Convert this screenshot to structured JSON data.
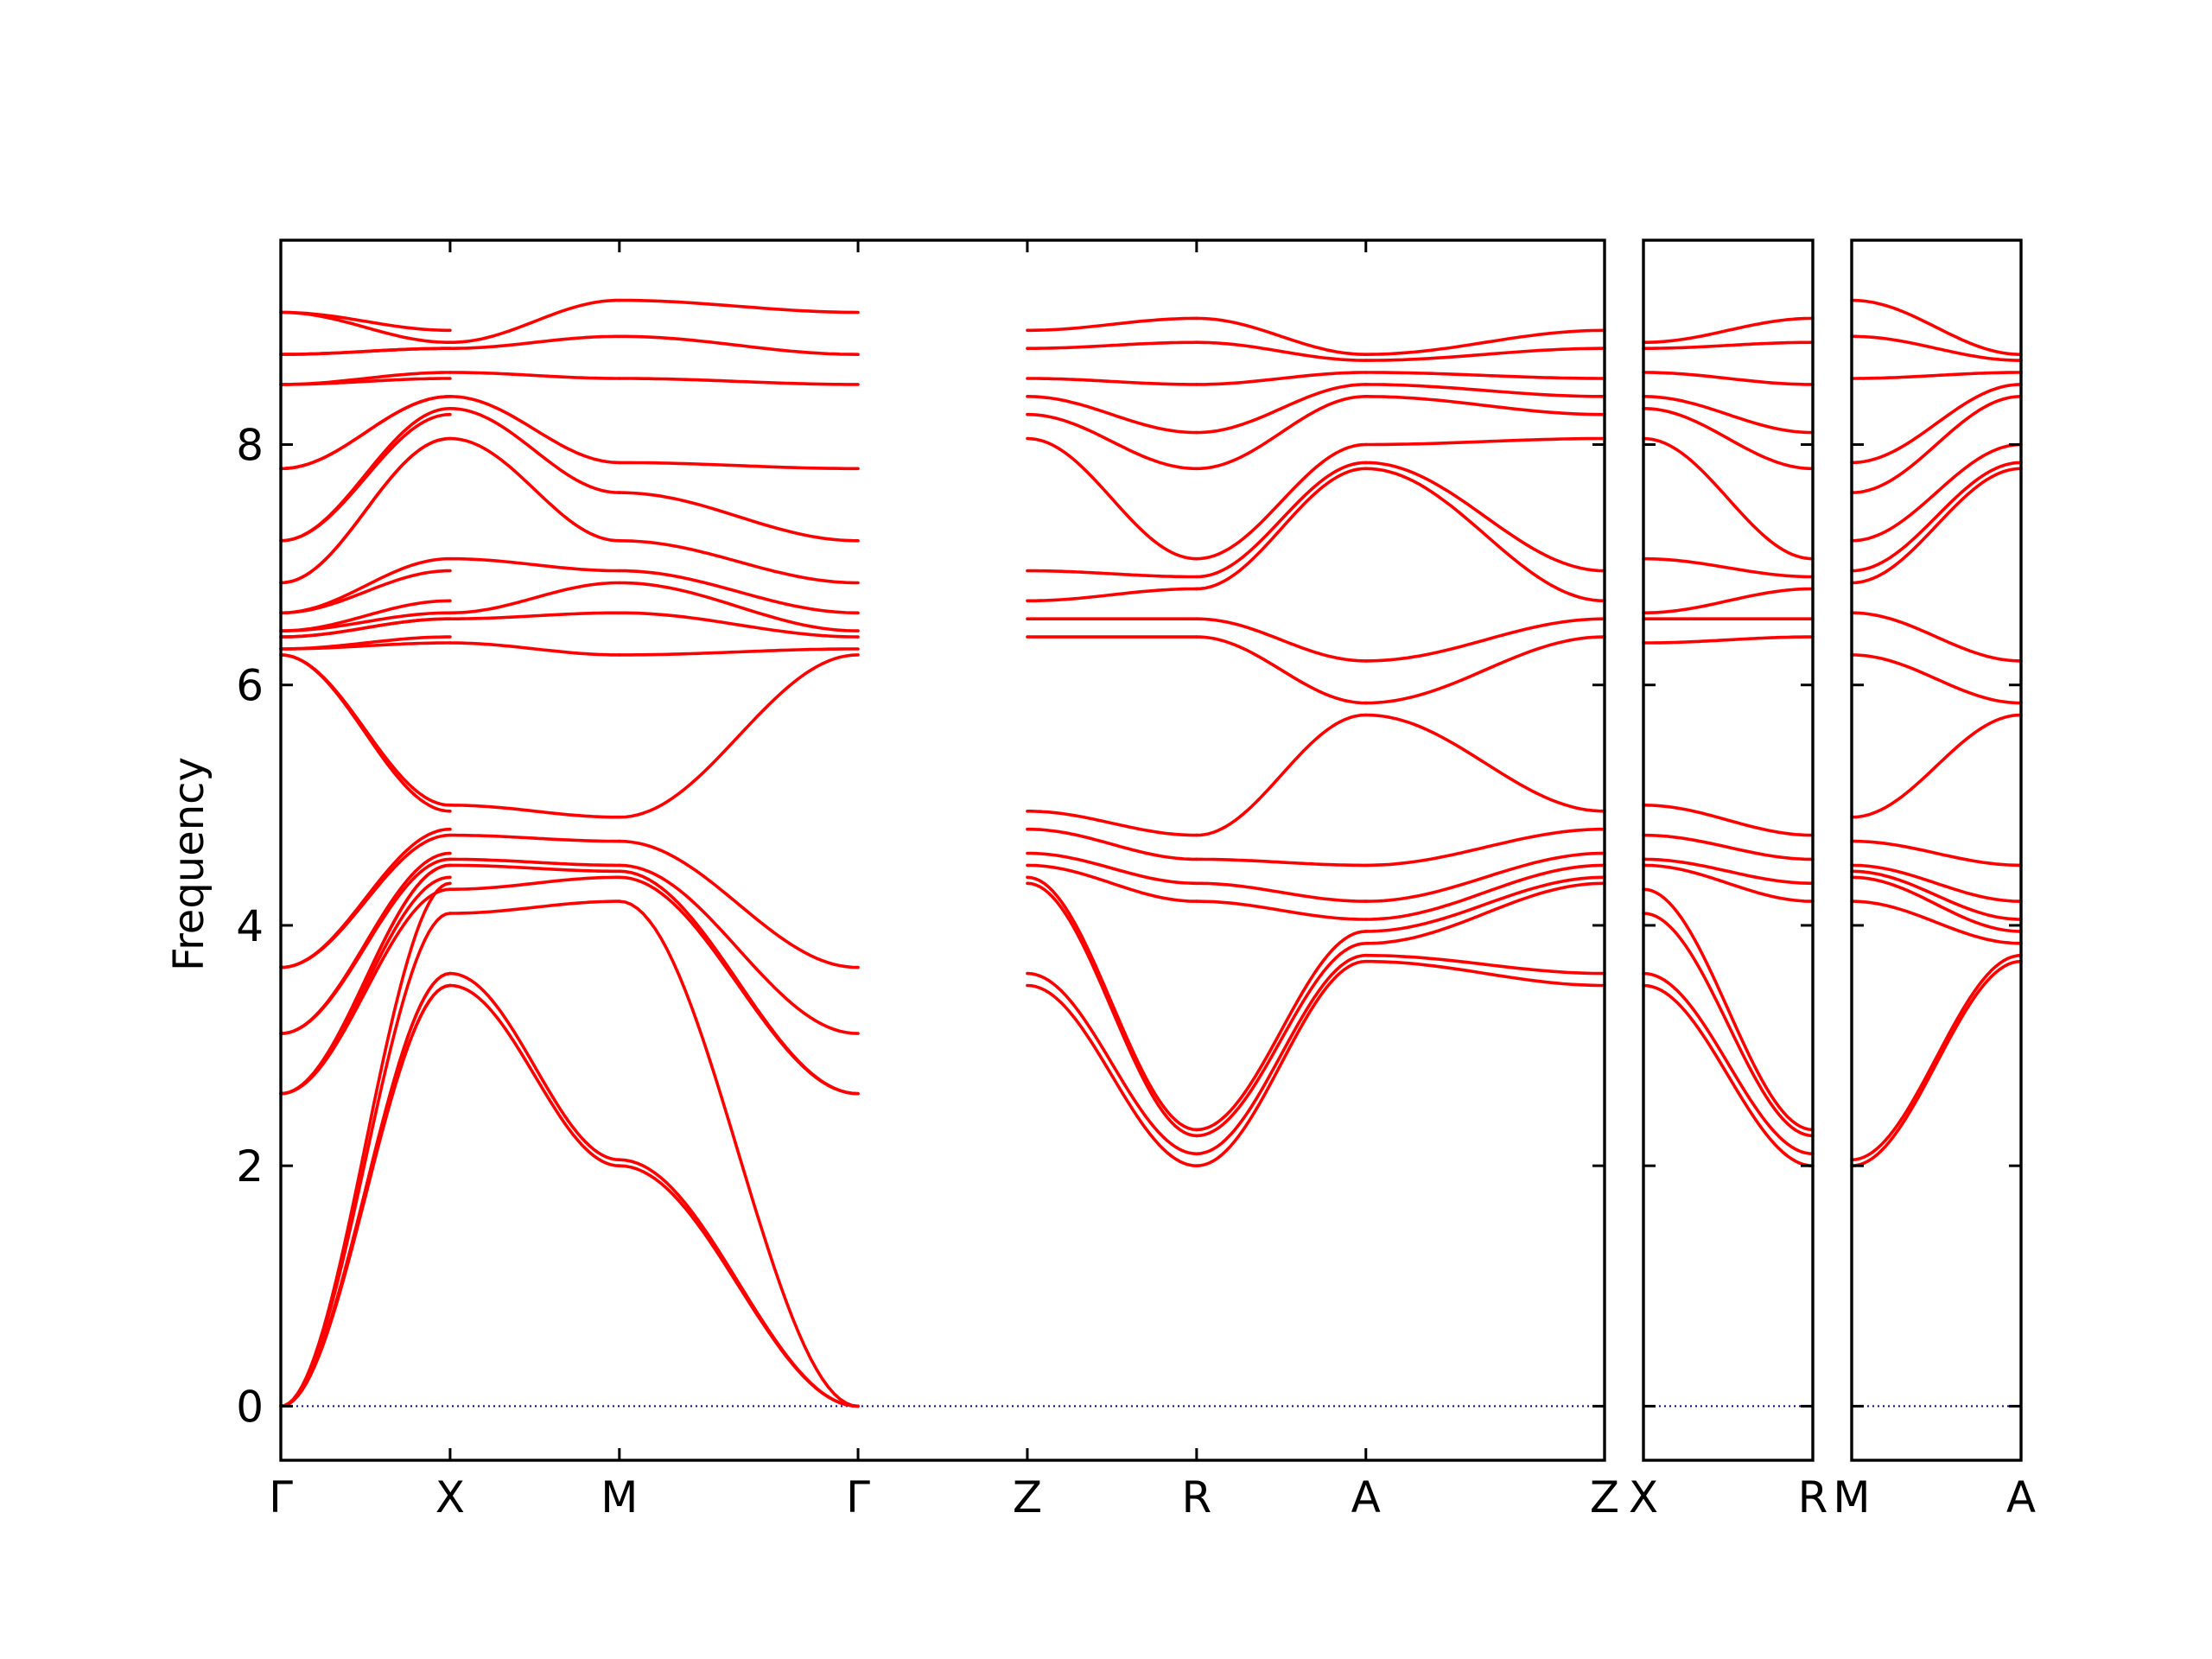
{
  "chart_data": {
    "type": "line",
    "title": "",
    "xlabel": "",
    "ylabel": "Frequency",
    "ylim": [
      -0.45,
      9.7
    ],
    "yticks": [
      0,
      2,
      4,
      6,
      8
    ],
    "grid": false,
    "legend": "none",
    "colors": {
      "band": "#ff0000",
      "zero_line": "#0000cc",
      "frame": "#000000"
    },
    "panels": [
      {
        "id": "panel-1",
        "labels": [
          "Γ",
          "X",
          "M",
          "Γ",
          "Z",
          "R",
          "A",
          "Z"
        ],
        "positions": [
          0,
          1,
          2,
          3.41,
          4.41,
          5.41,
          6.41,
          7.82
        ],
        "segments": [
          {
            "from": "Γ",
            "to": "X",
            "start": [
              0,
              0,
              0,
              2.6,
              2.6,
              3.1,
              3.65,
              6.25,
              6.3,
              6.4,
              6.45,
              6.6,
              6.85,
              7.2,
              7.8,
              8.5,
              8.75,
              9.1
            ],
            "end": [
              3.5,
              3.6,
              4.1,
              4.3,
              4.5,
              4.55,
              4.75,
              5.0,
              6.35,
              6.55,
              6.6,
              7.05,
              8.05,
              8.3,
              8.4,
              8.6,
              8.8,
              8.85
            ]
          },
          {
            "from": "X",
            "to": "M",
            "start": [
              3.5,
              3.6,
              4.1,
              4.3,
              4.5,
              4.55,
              4.75,
              5.0,
              6.35,
              6.55,
              6.6,
              7.05,
              8.05,
              8.3,
              8.4,
              8.6,
              8.8,
              8.85
            ],
            "end": [
              2.0,
              2.05,
              4.2,
              4.4,
              4.45,
              4.5,
              4.7,
              4.9,
              6.25,
              6.6,
              6.85,
              6.95,
              7.2,
              7.6,
              7.85,
              8.55,
              8.9,
              9.2
            ]
          },
          {
            "from": "M",
            "to": "Γ",
            "start": [
              2.0,
              2.05,
              4.2,
              4.4,
              4.45,
              4.5,
              4.7,
              4.9,
              6.25,
              6.6,
              6.85,
              6.95,
              7.2,
              7.6,
              7.85,
              8.55,
              8.9,
              9.2
            ],
            "end": [
              0,
              0,
              0,
              2.6,
              2.6,
              3.1,
              3.65,
              6.25,
              6.3,
              6.4,
              6.45,
              6.6,
              6.85,
              7.2,
              7.8,
              8.5,
              8.75,
              9.1
            ]
          },
          {
            "from": "Γ",
            "to": "Z",
            "start": [
              0,
              0,
              0,
              2.6,
              2.6,
              3.1,
              3.65,
              6.25,
              6.3,
              6.4,
              6.45,
              6.6,
              6.85,
              7.2,
              7.8,
              8.5,
              8.75,
              9.1
            ],
            "end": [
              3.5,
              3.6,
              4.35,
              4.4,
              4.5,
              4.6,
              4.8,
              4.95,
              6.4,
              6.55,
              6.7,
              6.95,
              8.05,
              8.25,
              8.4,
              8.55,
              8.8,
              8.95
            ]
          },
          {
            "from": "Z",
            "to": "R",
            "start": [
              3.5,
              3.6,
              4.35,
              4.4,
              4.5,
              4.6,
              4.8,
              4.95,
              6.4,
              6.55,
              6.7,
              6.95,
              8.05,
              8.25,
              8.4,
              8.55,
              8.8,
              8.95
            ],
            "end": [
              2.0,
              2.1,
              2.25,
              2.3,
              4.2,
              4.35,
              4.55,
              4.75,
              6.4,
              6.55,
              6.8,
              6.9,
              7.05,
              7.8,
              8.1,
              8.5,
              8.85,
              9.05
            ]
          },
          {
            "from": "R",
            "to": "A",
            "start": [
              2.0,
              2.1,
              2.25,
              2.3,
              4.2,
              4.35,
              4.55,
              4.75,
              6.4,
              6.55,
              6.8,
              6.9,
              7.05,
              7.8,
              8.1,
              8.5,
              8.85,
              9.05
            ],
            "end": [
              3.7,
              3.75,
              3.85,
              3.95,
              4.05,
              4.2,
              4.5,
              5.75,
              5.85,
              6.2,
              7.8,
              7.85,
              8.0,
              8.4,
              8.5,
              8.6,
              8.7,
              8.75
            ]
          },
          {
            "from": "A",
            "to": "Z",
            "start": [
              3.7,
              3.75,
              3.85,
              3.95,
              4.05,
              4.2,
              4.5,
              5.75,
              5.85,
              6.2,
              7.8,
              7.85,
              8.0,
              8.4,
              8.5,
              8.6,
              8.7,
              8.75
            ],
            "end": [
              3.5,
              3.6,
              4.35,
              4.4,
              4.5,
              4.6,
              4.8,
              4.95,
              6.4,
              6.55,
              6.7,
              6.95,
              8.05,
              8.25,
              8.4,
              8.55,
              8.8,
              8.95
            ]
          }
        ]
      },
      {
        "id": "panel-2",
        "labels": [
          "X",
          "R"
        ],
        "positions": [
          0,
          1
        ],
        "segments": [
          {
            "from": "X",
            "to": "R",
            "start": [
              3.5,
              3.6,
              4.1,
              4.3,
              4.5,
              4.55,
              4.75,
              5.0,
              6.35,
              6.55,
              6.6,
              7.05,
              8.05,
              8.3,
              8.4,
              8.6,
              8.8,
              8.85
            ],
            "end": [
              2.0,
              2.1,
              2.25,
              2.3,
              4.2,
              4.35,
              4.55,
              4.75,
              6.4,
              6.55,
              6.8,
              6.9,
              7.05,
              7.8,
              8.1,
              8.5,
              8.85,
              9.05
            ]
          }
        ]
      },
      {
        "id": "panel-3",
        "labels": [
          "M",
          "A"
        ],
        "positions": [
          0,
          1
        ],
        "segments": [
          {
            "from": "M",
            "to": "A",
            "start": [
              2.0,
              2.05,
              4.2,
              4.4,
              4.45,
              4.5,
              4.7,
              4.9,
              6.25,
              6.6,
              6.85,
              6.95,
              7.2,
              7.6,
              7.85,
              8.55,
              8.9,
              9.2
            ],
            "end": [
              3.7,
              3.75,
              3.85,
              3.95,
              4.05,
              4.2,
              4.5,
              5.75,
              5.85,
              6.2,
              7.8,
              7.85,
              8.0,
              8.4,
              8.5,
              8.6,
              8.7,
              8.75
            ]
          }
        ]
      }
    ]
  }
}
